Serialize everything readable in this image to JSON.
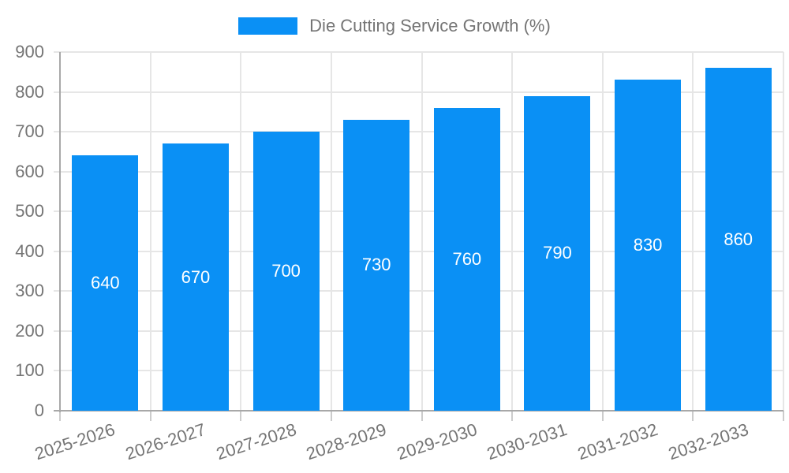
{
  "chart_data": {
    "type": "bar",
    "title": "Die Cutting Service Growth (%)",
    "categories": [
      "2025-2026",
      "2026-2027",
      "2027-2028",
      "2028-2029",
      "2029-2030",
      "2030-2031",
      "2031-2032",
      "2032-2033"
    ],
    "values": [
      640,
      670,
      700,
      730,
      760,
      790,
      830,
      860
    ],
    "data_labels": [
      "640",
      "670",
      "700",
      "730",
      "760",
      "790",
      "830",
      "860"
    ],
    "xlabel": "",
    "ylabel": "",
    "ylim": [
      0,
      900
    ],
    "yticks": [
      0,
      100,
      200,
      300,
      400,
      500,
      600,
      700,
      800,
      900
    ],
    "grid": true,
    "legend_position": "top",
    "colors": {
      "bar": "#0a90f5",
      "bar_label_text": "#ffffff",
      "axis_text": "#757575",
      "axis_line": "#a8a8a8",
      "grid_line": "#e6e6e6",
      "tick_line": "#cccccc",
      "background": "#ffffff"
    }
  }
}
